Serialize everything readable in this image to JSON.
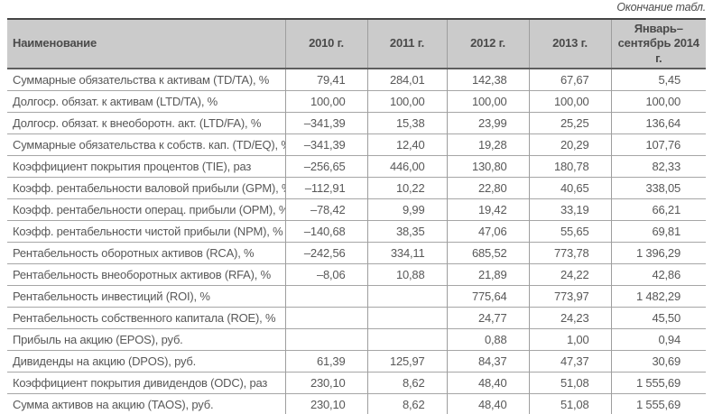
{
  "caption": "Окончание табл.",
  "table": {
    "columns": [
      "Наименование",
      "2010 г.",
      "2011 г.",
      "2012 г.",
      "2013 г.",
      "Январь–сентябрь 2014 г."
    ],
    "rows": [
      {
        "name": "Суммарные обязательства к активам (TD/TA), %",
        "values": [
          "79,41",
          "284,01",
          "142,38",
          "67,67",
          "5,45"
        ]
      },
      {
        "name": "Долгоср. обязат. к активам (LTD/TA), %",
        "values": [
          "100,00",
          "100,00",
          "100,00",
          "100,00",
          "100,00"
        ]
      },
      {
        "name": "Долгоср. обязат. к внеоборотн. акт. (LTD/FA), %",
        "values": [
          "–341,39",
          "15,38",
          "23,99",
          "25,25",
          "136,64"
        ]
      },
      {
        "name": "Суммарные обязательства к собств. кап. (TD/EQ), %",
        "values": [
          "–341,39",
          "12,40",
          "19,28",
          "20,29",
          "107,76"
        ]
      },
      {
        "name": "Коэффициент покрытия процентов (TIE), раз",
        "values": [
          "–256,65",
          "446,00",
          "130,80",
          "180,78",
          "82,33"
        ]
      },
      {
        "name": "Коэфф. рентабельности валовой прибыли (GPM), %",
        "values": [
          "–112,91",
          "10,22",
          "22,80",
          "40,65",
          "338,05"
        ]
      },
      {
        "name": "Коэфф. рентабельности операц. прибыли (OPM), %",
        "values": [
          "–78,42",
          "9,99",
          "19,42",
          "33,19",
          "66,21"
        ]
      },
      {
        "name": "Коэфф. рентабельности чистой прибыли (NPM), %",
        "values": [
          "–140,68",
          "38,35",
          "47,06",
          "55,65",
          "69,81"
        ]
      },
      {
        "name": "Рентабельность оборотных активов (RCA), %",
        "values": [
          "–242,56",
          "334,11",
          "685,52",
          "773,78",
          "1 396,29"
        ]
      },
      {
        "name": "Рентабельность внеоборотных активов (RFA), %",
        "values": [
          "–8,06",
          "10,88",
          "21,89",
          "24,22",
          "42,86"
        ]
      },
      {
        "name": "Рентабельность инвестиций (ROI), %",
        "values": [
          "",
          "",
          "775,64",
          "773,97",
          "1 482,29"
        ]
      },
      {
        "name": "Рентабельность собственного капитала (ROE), %",
        "values": [
          "",
          "",
          "24,77",
          "24,23",
          "45,50"
        ]
      },
      {
        "name": "Прибыль на акцию (EPOS), руб.",
        "values": [
          "",
          "",
          "0,88",
          "1,00",
          "0,94"
        ]
      },
      {
        "name": "Дивиденды на акцию (DPOS), руб.",
        "values": [
          "61,39",
          "125,97",
          "84,37",
          "47,37",
          "30,69"
        ]
      },
      {
        "name": "Коэффициент покрытия дивидендов (ODC), раз",
        "values": [
          "230,10",
          "8,62",
          "48,40",
          "51,08",
          "1 555,69"
        ]
      },
      {
        "name": "Сумма активов на акцию (TAOS), руб.",
        "values": [
          "230,10",
          "8,62",
          "48,40",
          "51,08",
          "1 555,69"
        ]
      }
    ]
  },
  "colors": {
    "header_bg": "#cbcbcb",
    "body_text": "#585858",
    "thick_border": "#454545",
    "thin_border": "#a6a6a6"
  }
}
